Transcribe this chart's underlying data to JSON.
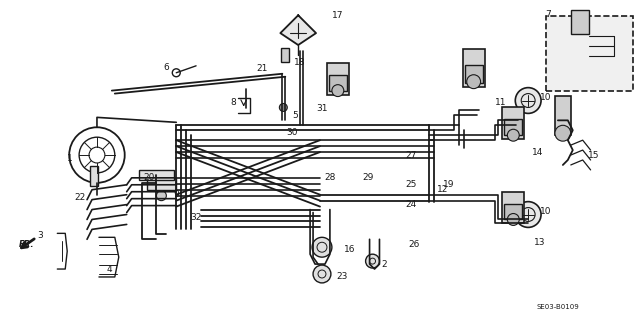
{
  "bg_color": "#f5f5f5",
  "line_color": "#1a1a1a",
  "diagram_code": "SE03-B0109",
  "fig_width": 6.4,
  "fig_height": 3.19,
  "dpi": 100,
  "label_fontsize": 6.0
}
